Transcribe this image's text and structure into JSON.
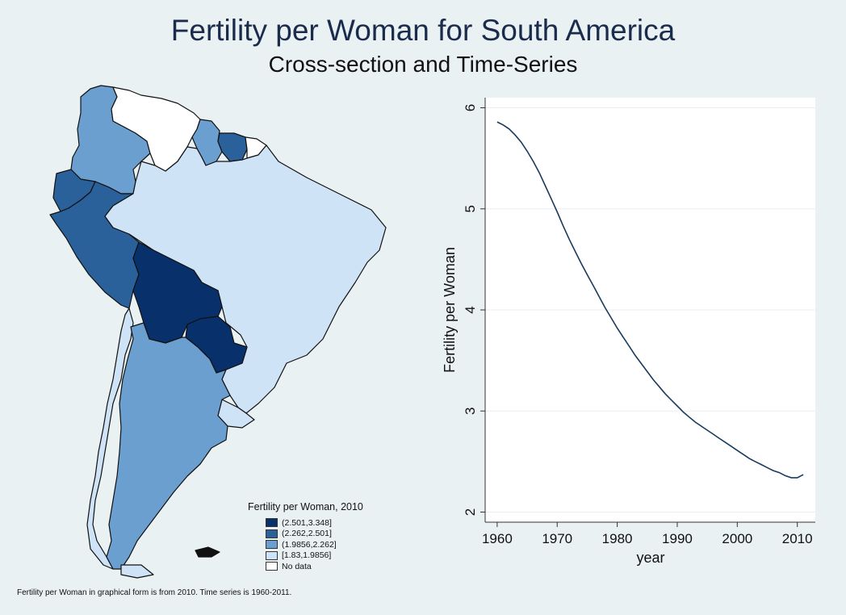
{
  "title": "Fertility per Woman for South America",
  "subtitle": "Cross-section and Time-Series",
  "footnote": "Fertility per Woman in graphical form is from 2010.  Time series is 1960-2011.",
  "map": {
    "legend_title": "Fertility per Woman, 2010",
    "legend": [
      {
        "label": "(2.501,3.348]",
        "color": "#08306b"
      },
      {
        "label": "(2.262,2.501]",
        "color": "#2a619a"
      },
      {
        "label": "(1.9856,2.262]",
        "color": "#6b9fcf"
      },
      {
        "label": "[1.83,1.9856]",
        "color": "#cfe3f7"
      },
      {
        "label": "No data",
        "color": "#ffffff"
      }
    ],
    "regions": [
      {
        "name": "Bolivia",
        "category": 0
      },
      {
        "name": "Paraguay",
        "category": 0
      },
      {
        "name": "Peru",
        "category": 1
      },
      {
        "name": "Ecuador",
        "category": 1
      },
      {
        "name": "Suriname",
        "category": 1
      },
      {
        "name": "Colombia",
        "category": 2
      },
      {
        "name": "Argentina",
        "category": 2
      },
      {
        "name": "Guyana",
        "category": 2
      },
      {
        "name": "Brazil",
        "category": 3
      },
      {
        "name": "Chile",
        "category": 3
      },
      {
        "name": "Uruguay",
        "category": 3
      },
      {
        "name": "Venezuela",
        "category": 4
      },
      {
        "name": "French Guiana",
        "category": 4
      }
    ]
  },
  "chart_data": {
    "type": "line",
    "title": "",
    "xlabel": "year",
    "ylabel": "Fertility per Woman",
    "xlim": [
      1958,
      2013
    ],
    "ylim": [
      1.9,
      6.1
    ],
    "xticks": [
      1960,
      1970,
      1980,
      1990,
      2000,
      2010
    ],
    "yticks": [
      2,
      3,
      4,
      5,
      6
    ],
    "grid": true,
    "series": [
      {
        "color": "#1a3a5c",
        "x": [
          1960,
          1961,
          1962,
          1963,
          1964,
          1965,
          1966,
          1967,
          1968,
          1969,
          1970,
          1971,
          1972,
          1973,
          1974,
          1975,
          1976,
          1977,
          1978,
          1979,
          1980,
          1981,
          1982,
          1983,
          1984,
          1985,
          1986,
          1987,
          1988,
          1989,
          1990,
          1991,
          1992,
          1993,
          1994,
          1995,
          1996,
          1997,
          1998,
          1999,
          2000,
          2001,
          2002,
          2003,
          2004,
          2005,
          2006,
          2007,
          2008,
          2009,
          2010,
          2011
        ],
        "y": [
          5.86,
          5.83,
          5.79,
          5.73,
          5.66,
          5.57,
          5.47,
          5.36,
          5.23,
          5.1,
          4.97,
          4.83,
          4.7,
          4.58,
          4.46,
          4.35,
          4.24,
          4.13,
          4.02,
          3.92,
          3.82,
          3.73,
          3.64,
          3.55,
          3.47,
          3.39,
          3.31,
          3.24,
          3.17,
          3.11,
          3.05,
          2.99,
          2.94,
          2.89,
          2.85,
          2.81,
          2.77,
          2.73,
          2.69,
          2.65,
          2.61,
          2.57,
          2.53,
          2.5,
          2.47,
          2.44,
          2.41,
          2.39,
          2.36,
          2.34,
          2.34,
          2.37
        ]
      }
    ]
  }
}
